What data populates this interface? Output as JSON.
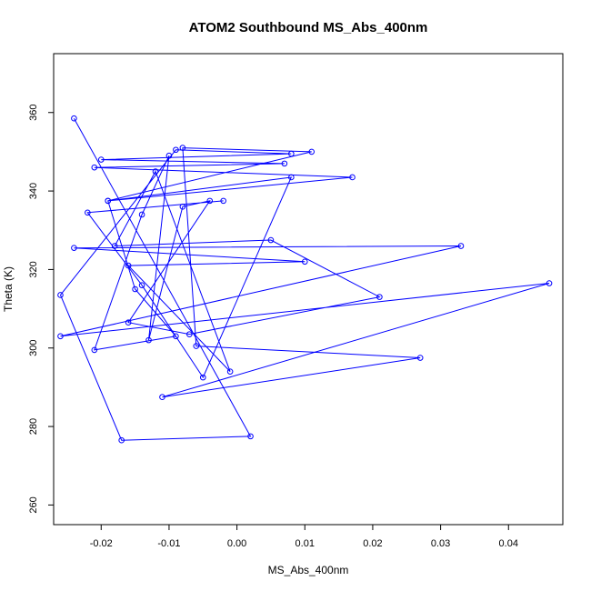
{
  "chart_data": {
    "type": "line",
    "title": "ATOM2 Southbound MS_Abs_400nm",
    "xlabel": "MS_Abs_400nm",
    "ylabel": "Theta (K)",
    "xlim": [
      -0.027,
      0.048
    ],
    "ylim": [
      255,
      375
    ],
    "xticks": [
      -0.02,
      -0.01,
      0.0,
      0.01,
      0.02,
      0.03,
      0.04
    ],
    "xtick_labels": [
      "-0.02",
      "-0.01",
      "0.00",
      "0.01",
      "0.02",
      "0.03",
      "0.04"
    ],
    "yticks": [
      260,
      280,
      300,
      320,
      340,
      360
    ],
    "ytick_labels": [
      "260",
      "280",
      "300",
      "320",
      "340",
      "360"
    ],
    "grid": false,
    "color": "#0000ff",
    "markers": "open-circle",
    "series": [
      {
        "x": [
          -0.024,
          0.002,
          -0.017,
          -0.026,
          -0.009,
          0.008,
          -0.02,
          0.007,
          -0.021,
          0.017,
          -0.019,
          0.011,
          -0.008,
          -0.006,
          0.027,
          -0.011,
          0.046,
          -0.026,
          0.033,
          -0.024,
          0.01,
          -0.016,
          -0.001,
          -0.012,
          -0.018,
          0.005,
          0.021,
          -0.007,
          -0.016,
          -0.004,
          -0.008,
          -0.013,
          -0.01,
          -0.014,
          -0.021,
          -0.009,
          -0.015,
          -0.019,
          0.008,
          -0.005,
          -0.014,
          -0.022,
          -0.002
        ],
        "y": [
          358.5,
          277.5,
          276.5,
          313.5,
          350.5,
          349.5,
          348,
          347,
          346,
          343.5,
          337.5,
          350,
          351,
          300.5,
          297.5,
          287.5,
          316.5,
          303,
          326,
          325.5,
          322,
          321,
          294,
          345,
          326,
          327.5,
          313,
          303.5,
          306.5,
          337.5,
          336,
          302,
          349,
          334,
          299.5,
          303,
          315,
          337.5,
          343.5,
          292.5,
          316,
          334.5,
          337.5
        ]
      }
    ]
  }
}
